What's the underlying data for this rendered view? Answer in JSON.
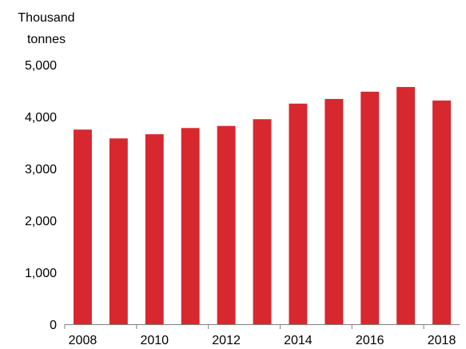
{
  "chart_data": {
    "type": "bar",
    "categories": [
      "2008",
      "2009",
      "2010",
      "2011",
      "2012",
      "2013",
      "2014",
      "2015",
      "2016",
      "2017",
      "2018"
    ],
    "series": [
      {
        "values": [
          3750,
          3580,
          3660,
          3780,
          3820,
          3950,
          4250,
          4340,
          4480,
          4570,
          4310
        ]
      }
    ],
    "x_tick_labels": [
      "2008",
      "2010",
      "2012",
      "2014",
      "2016",
      "2018"
    ],
    "ylabel": [
      "Thousand",
      "tonnes"
    ],
    "ylim": [
      0,
      5000
    ],
    "y_ticks": [
      0,
      1000,
      2000,
      3000,
      4000,
      5000
    ],
    "y_tick_labels": [
      "0",
      "1,000",
      "2,000",
      "3,000",
      "4,000",
      "5,000"
    ],
    "grid": false,
    "legend": "none",
    "colors": {
      "bar": "#d7282f",
      "axis": "#808080",
      "text": "#000000"
    }
  }
}
